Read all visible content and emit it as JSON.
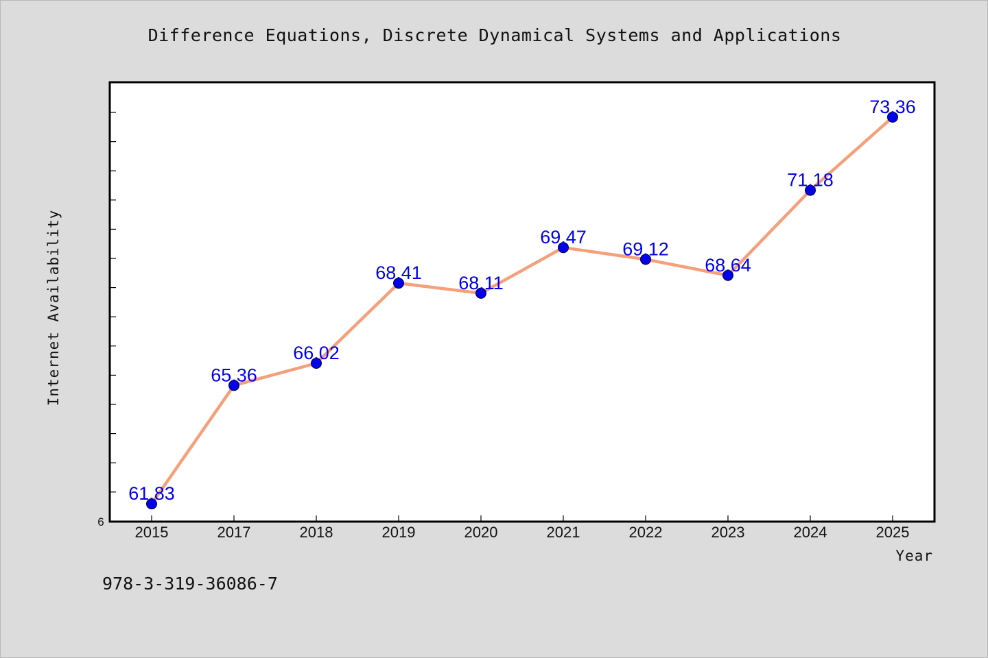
{
  "chart_data": {
    "type": "line",
    "title": "Difference Equations, Discrete Dynamical Systems and Applications",
    "xlabel": "Year",
    "ylabel": "Internet Availability",
    "categories": [
      "2015",
      "2017",
      "2018",
      "2019",
      "2020",
      "2021",
      "2022",
      "2023",
      "2024",
      "2025"
    ],
    "series": [
      {
        "values": [
          61.83,
          65.36,
          66.02,
          68.41,
          68.11,
          69.47,
          69.12,
          68.64,
          71.18,
          73.36
        ]
      }
    ],
    "ylim": [
      61.3,
      74.4
    ],
    "y_tick_labels": [
      "6"
    ],
    "grid": false,
    "legend": "none",
    "colors": {
      "line": "#f5a07a",
      "marker": "#0000ee",
      "label": "#0000ee",
      "plot_background": "#ffffff",
      "page_background": "#dcdcdc"
    }
  },
  "footer": {
    "text": "978-3-319-36086-7"
  }
}
